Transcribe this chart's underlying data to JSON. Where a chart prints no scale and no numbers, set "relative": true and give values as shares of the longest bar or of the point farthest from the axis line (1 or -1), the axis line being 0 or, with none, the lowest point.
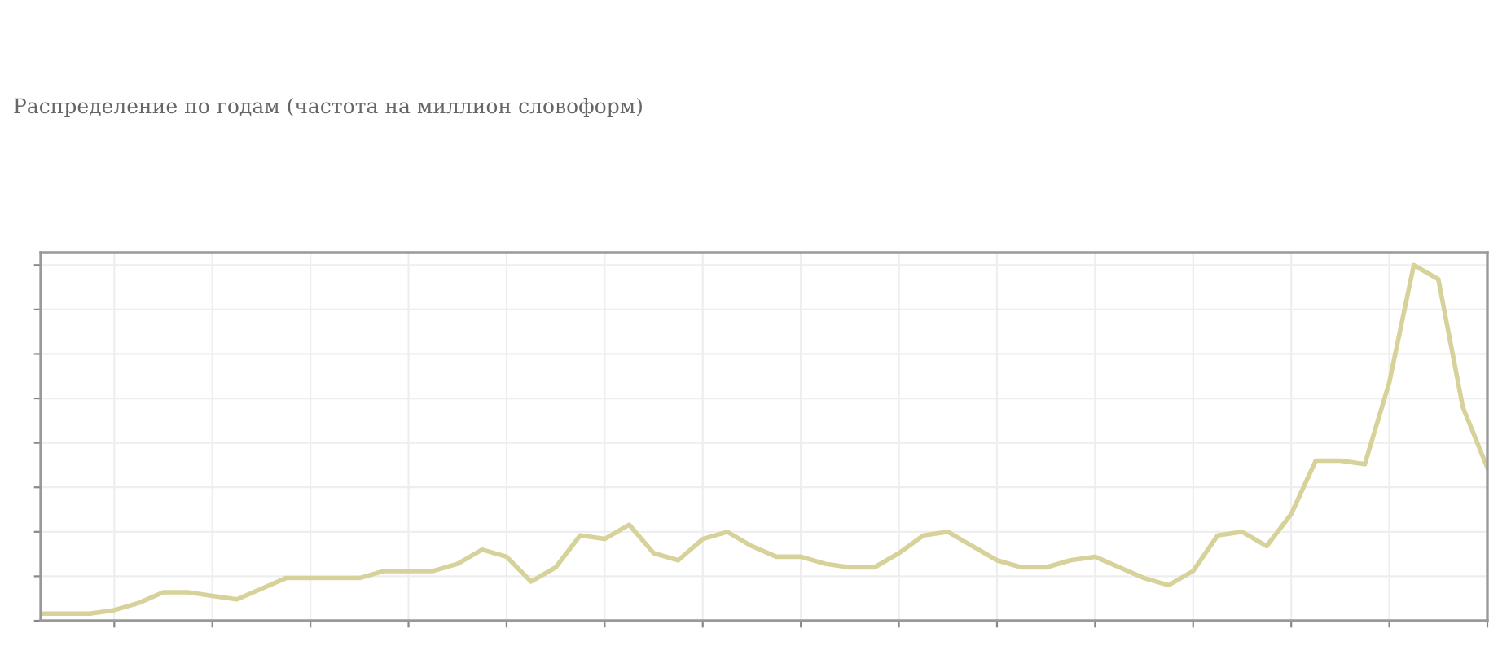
{
  "chart_data": {
    "type": "line",
    "title": "Распределение по годам (частота на миллион словоформ)",
    "relative": true,
    "grid": true,
    "categories": [
      null,
      null,
      null,
      null,
      null,
      null,
      null,
      null,
      null,
      null,
      null,
      null,
      null,
      null,
      null,
      null,
      null,
      null,
      null,
      null,
      null,
      null,
      null,
      null,
      null,
      null,
      null,
      null,
      null,
      null,
      null,
      null,
      null,
      null,
      null,
      null,
      null,
      null,
      null,
      null,
      null,
      null,
      null,
      null,
      null,
      null,
      null,
      null,
      null,
      null,
      null,
      null,
      null,
      null,
      null,
      null,
      null,
      null,
      null,
      null
    ],
    "series": [
      {
        "color": "#d6d29a",
        "values": [
          0.02,
          0.02,
          0.02,
          0.03,
          0.05,
          0.08,
          0.08,
          0.07,
          0.06,
          0.09,
          0.12,
          0.12,
          0.12,
          0.12,
          0.14,
          0.14,
          0.14,
          0.16,
          0.2,
          0.18,
          0.11,
          0.15,
          0.24,
          0.23,
          0.27,
          0.19,
          0.17,
          0.23,
          0.25,
          0.21,
          0.18,
          0.18,
          0.16,
          0.15,
          0.15,
          0.19,
          0.24,
          0.25,
          0.21,
          0.17,
          0.15,
          0.15,
          0.17,
          0.18,
          0.15,
          0.12,
          0.1,
          0.14,
          0.24,
          0.25,
          0.21,
          0.3,
          0.45,
          0.45,
          0.44,
          0.67,
          1,
          0.96,
          0.6,
          0.43
        ]
      }
    ]
  }
}
